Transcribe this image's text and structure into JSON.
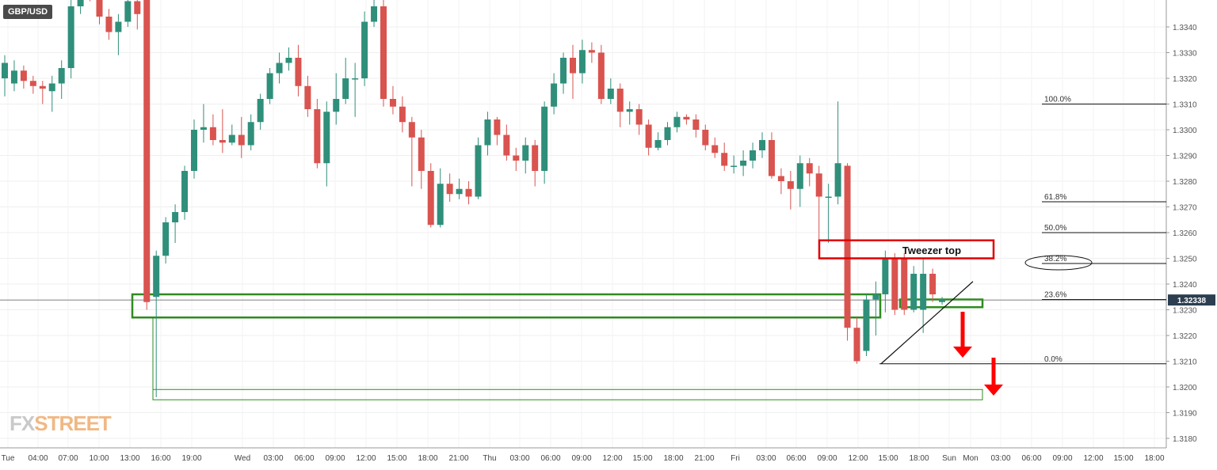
{
  "symbol": "GBP/USD",
  "logo": {
    "part1": "FX",
    "part2": "STREET"
  },
  "chart_data": {
    "type": "candlestick",
    "symbol": "GBP/USD",
    "timeframe": "1H",
    "ylim": [
      1.3175,
      1.3355
    ],
    "y_ticks": [
      1.318,
      1.319,
      1.32,
      1.321,
      1.322,
      1.323,
      1.324,
      1.325,
      1.326,
      1.327,
      1.328,
      1.329,
      1.33,
      1.331,
      1.332,
      1.333,
      1.334
    ],
    "current_price": "1.32338",
    "x_ticks": [
      "Tue",
      "04:00",
      "07:00",
      "10:00",
      "13:00",
      "16:00",
      "19:00",
      "Wed",
      "03:00",
      "06:00",
      "09:00",
      "12:00",
      "15:00",
      "18:00",
      "21:00",
      "Thu",
      "03:00",
      "06:00",
      "09:00",
      "12:00",
      "15:00",
      "18:00",
      "21:00",
      "Fri",
      "03:00",
      "06:00",
      "09:00",
      "12:00",
      "15:00",
      "18:00",
      "Sun",
      "Mon",
      "03:00",
      "06:00",
      "09:00",
      "12:00",
      "15:00",
      "18:00"
    ],
    "candles": [
      [
        1.332,
        1.3326,
        1.3329,
        1.3313
      ],
      [
        1.3318,
        1.3323,
        1.3327,
        1.3315
      ],
      [
        1.3323,
        1.3319,
        1.3325,
        1.3316
      ],
      [
        1.3319,
        1.3317,
        1.3321,
        1.3314
      ],
      [
        1.3317,
        1.3316,
        1.3319,
        1.331
      ],
      [
        1.3315,
        1.3318,
        1.3321,
        1.3307
      ],
      [
        1.3318,
        1.3324,
        1.3327,
        1.3312
      ],
      [
        1.3324,
        1.3348,
        1.3352,
        1.332
      ],
      [
        1.3348,
        1.336,
        1.3365,
        1.3345
      ],
      [
        1.336,
        1.3355,
        1.3362,
        1.335
      ],
      [
        1.3355,
        1.3344,
        1.3358,
        1.3341
      ],
      [
        1.3344,
        1.3338,
        1.3347,
        1.3335
      ],
      [
        1.3338,
        1.3342,
        1.3345,
        1.3329
      ],
      [
        1.3342,
        1.335,
        1.3354,
        1.334
      ],
      [
        1.335,
        1.3345,
        1.3355,
        1.3339
      ],
      [
        1.336,
        1.3233,
        1.3362,
        1.323
      ],
      [
        1.3235,
        1.3251,
        1.3253,
        1.3196
      ],
      [
        1.3251,
        1.3264,
        1.3266,
        1.3248
      ],
      [
        1.3264,
        1.3268,
        1.3271,
        1.3256
      ],
      [
        1.3268,
        1.3284,
        1.3286,
        1.3265
      ],
      [
        1.3284,
        1.33,
        1.3304,
        1.3281
      ],
      [
        1.33,
        1.3301,
        1.331,
        1.3295
      ],
      [
        1.3301,
        1.3296,
        1.3306,
        1.3294
      ],
      [
        1.3296,
        1.3295,
        1.3308,
        1.3291
      ],
      [
        1.3295,
        1.3298,
        1.3302,
        1.3294
      ],
      [
        1.3298,
        1.3294,
        1.3305,
        1.3289
      ],
      [
        1.3294,
        1.3303,
        1.3306,
        1.3292
      ],
      [
        1.3303,
        1.3312,
        1.3314,
        1.33
      ],
      [
        1.3312,
        1.3322,
        1.3324,
        1.331
      ],
      [
        1.3322,
        1.3326,
        1.333,
        1.3318
      ],
      [
        1.3326,
        1.3328,
        1.3332,
        1.3323
      ],
      [
        1.3328,
        1.3317,
        1.3333,
        1.3313
      ],
      [
        1.3317,
        1.3308,
        1.3321,
        1.3305
      ],
      [
        1.3308,
        1.3287,
        1.3312,
        1.3285
      ],
      [
        1.3287,
        1.3307,
        1.3311,
        1.3278
      ],
      [
        1.3307,
        1.3312,
        1.3322,
        1.3302
      ],
      [
        1.3312,
        1.332,
        1.3328,
        1.331
      ],
      [
        1.332,
        1.332,
        1.3326,
        1.3305
      ],
      [
        1.332,
        1.3342,
        1.3346,
        1.3317
      ],
      [
        1.3342,
        1.3348,
        1.3352,
        1.334
      ],
      [
        1.3348,
        1.3312,
        1.3355,
        1.3309
      ],
      [
        1.3312,
        1.3309,
        1.3317,
        1.3306
      ],
      [
        1.3309,
        1.3303,
        1.3313,
        1.3299
      ],
      [
        1.3303,
        1.3297,
        1.3305,
        1.3278
      ],
      [
        1.3297,
        1.3284,
        1.33,
        1.3277
      ],
      [
        1.3284,
        1.3263,
        1.3287,
        1.3262
      ],
      [
        1.3263,
        1.3279,
        1.3285,
        1.3262
      ],
      [
        1.3279,
        1.3275,
        1.3283,
        1.3272
      ],
      [
        1.3275,
        1.3277,
        1.3281,
        1.3273
      ],
      [
        1.3277,
        1.3274,
        1.328,
        1.3271
      ],
      [
        1.3274,
        1.3294,
        1.3297,
        1.3273
      ],
      [
        1.3294,
        1.3304,
        1.3307,
        1.329
      ],
      [
        1.3304,
        1.3298,
        1.3305,
        1.3294
      ],
      [
        1.3298,
        1.329,
        1.3302,
        1.3288
      ],
      [
        1.329,
        1.3288,
        1.3293,
        1.3284
      ],
      [
        1.3288,
        1.3294,
        1.3297,
        1.3283
      ],
      [
        1.3294,
        1.3284,
        1.3296,
        1.3278
      ],
      [
        1.3284,
        1.3309,
        1.3311,
        1.3279
      ],
      [
        1.3309,
        1.3318,
        1.3322,
        1.3306
      ],
      [
        1.3318,
        1.3328,
        1.333,
        1.3314
      ],
      [
        1.3328,
        1.3322,
        1.3333,
        1.3312
      ],
      [
        1.3322,
        1.3331,
        1.3335,
        1.3318
      ],
      [
        1.3331,
        1.333,
        1.3334,
        1.3326
      ],
      [
        1.333,
        1.3312,
        1.3333,
        1.331
      ],
      [
        1.3312,
        1.3316,
        1.332,
        1.331
      ],
      [
        1.3316,
        1.3307,
        1.3318,
        1.3301
      ],
      [
        1.3307,
        1.3308,
        1.3311,
        1.3302
      ],
      [
        1.3308,
        1.3302,
        1.331,
        1.3298
      ],
      [
        1.3302,
        1.3293,
        1.3304,
        1.329
      ],
      [
        1.3293,
        1.3296,
        1.3299,
        1.3292
      ],
      [
        1.3296,
        1.3301,
        1.3303,
        1.3294
      ],
      [
        1.3301,
        1.3305,
        1.3307,
        1.3299
      ],
      [
        1.3305,
        1.3304,
        1.3306,
        1.3302
      ],
      [
        1.3304,
        1.33,
        1.3306,
        1.3297
      ],
      [
        1.33,
        1.3294,
        1.3302,
        1.3292
      ],
      [
        1.3294,
        1.3291,
        1.3297,
        1.3289
      ],
      [
        1.3291,
        1.3286,
        1.3295,
        1.3284
      ],
      [
        1.3286,
        1.3286,
        1.329,
        1.3283
      ],
      [
        1.3286,
        1.3288,
        1.3292,
        1.3282
      ],
      [
        1.3288,
        1.3292,
        1.3295,
        1.3285
      ],
      [
        1.3292,
        1.3296,
        1.3299,
        1.3289
      ],
      [
        1.3296,
        1.3282,
        1.3299,
        1.3281
      ],
      [
        1.3282,
        1.328,
        1.3285,
        1.3275
      ],
      [
        1.328,
        1.3277,
        1.3284,
        1.3269
      ],
      [
        1.3277,
        1.3287,
        1.329,
        1.327
      ],
      [
        1.3287,
        1.3283,
        1.3289,
        1.3278
      ],
      [
        1.3283,
        1.3274,
        1.3286,
        1.3255
      ],
      [
        1.3274,
        1.3274,
        1.3279,
        1.3256
      ],
      [
        1.3274,
        1.3287,
        1.3311,
        1.3271
      ],
      [
        1.3286,
        1.3223,
        1.3287,
        1.3218
      ],
      [
        1.3223,
        1.321,
        1.3227,
        1.3209
      ],
      [
        1.3214,
        1.3234,
        1.3236,
        1.3212
      ],
      [
        1.3234,
        1.3236,
        1.3241,
        1.322
      ],
      [
        1.3236,
        1.325,
        1.3253,
        1.3229
      ],
      [
        1.325,
        1.323,
        1.3252,
        1.3228
      ],
      [
        1.325,
        1.323,
        1.3252,
        1.3228
      ],
      [
        1.323,
        1.3244,
        1.3247,
        1.3229
      ],
      [
        1.323,
        1.3244,
        1.325,
        1.3221
      ],
      [
        1.3244,
        1.3236,
        1.3246,
        1.3233
      ],
      [
        1.3233,
        1.3234,
        1.3235,
        1.3232
      ]
    ],
    "annotations": {
      "fibonacci": [
        {
          "label": "100.0%",
          "price": 1.331
        },
        {
          "label": "61.8%",
          "price": 1.3272
        },
        {
          "label": "50.0%",
          "price": 1.326
        },
        {
          "label": "38.2%",
          "price": 1.3248
        },
        {
          "label": "23.6%",
          "price": 1.3234
        },
        {
          "label": "0.0%",
          "price": 1.3209
        },
        {
          "label": "100.0%",
          "price": 1.3355
        }
      ],
      "tweezer_label": "Tweezer top",
      "support_zone": {
        "top": 1.3236,
        "bottom": 1.3227
      },
      "target_zone": {
        "top": 1.3199,
        "bottom": 1.3195
      },
      "colors": {
        "bull": "#2f8f7a",
        "bear": "#d9534f",
        "zone": "#2e8b1f",
        "box": "#e00000",
        "arrow": "#ff0000",
        "price_tag": "#2c3e50"
      }
    }
  }
}
